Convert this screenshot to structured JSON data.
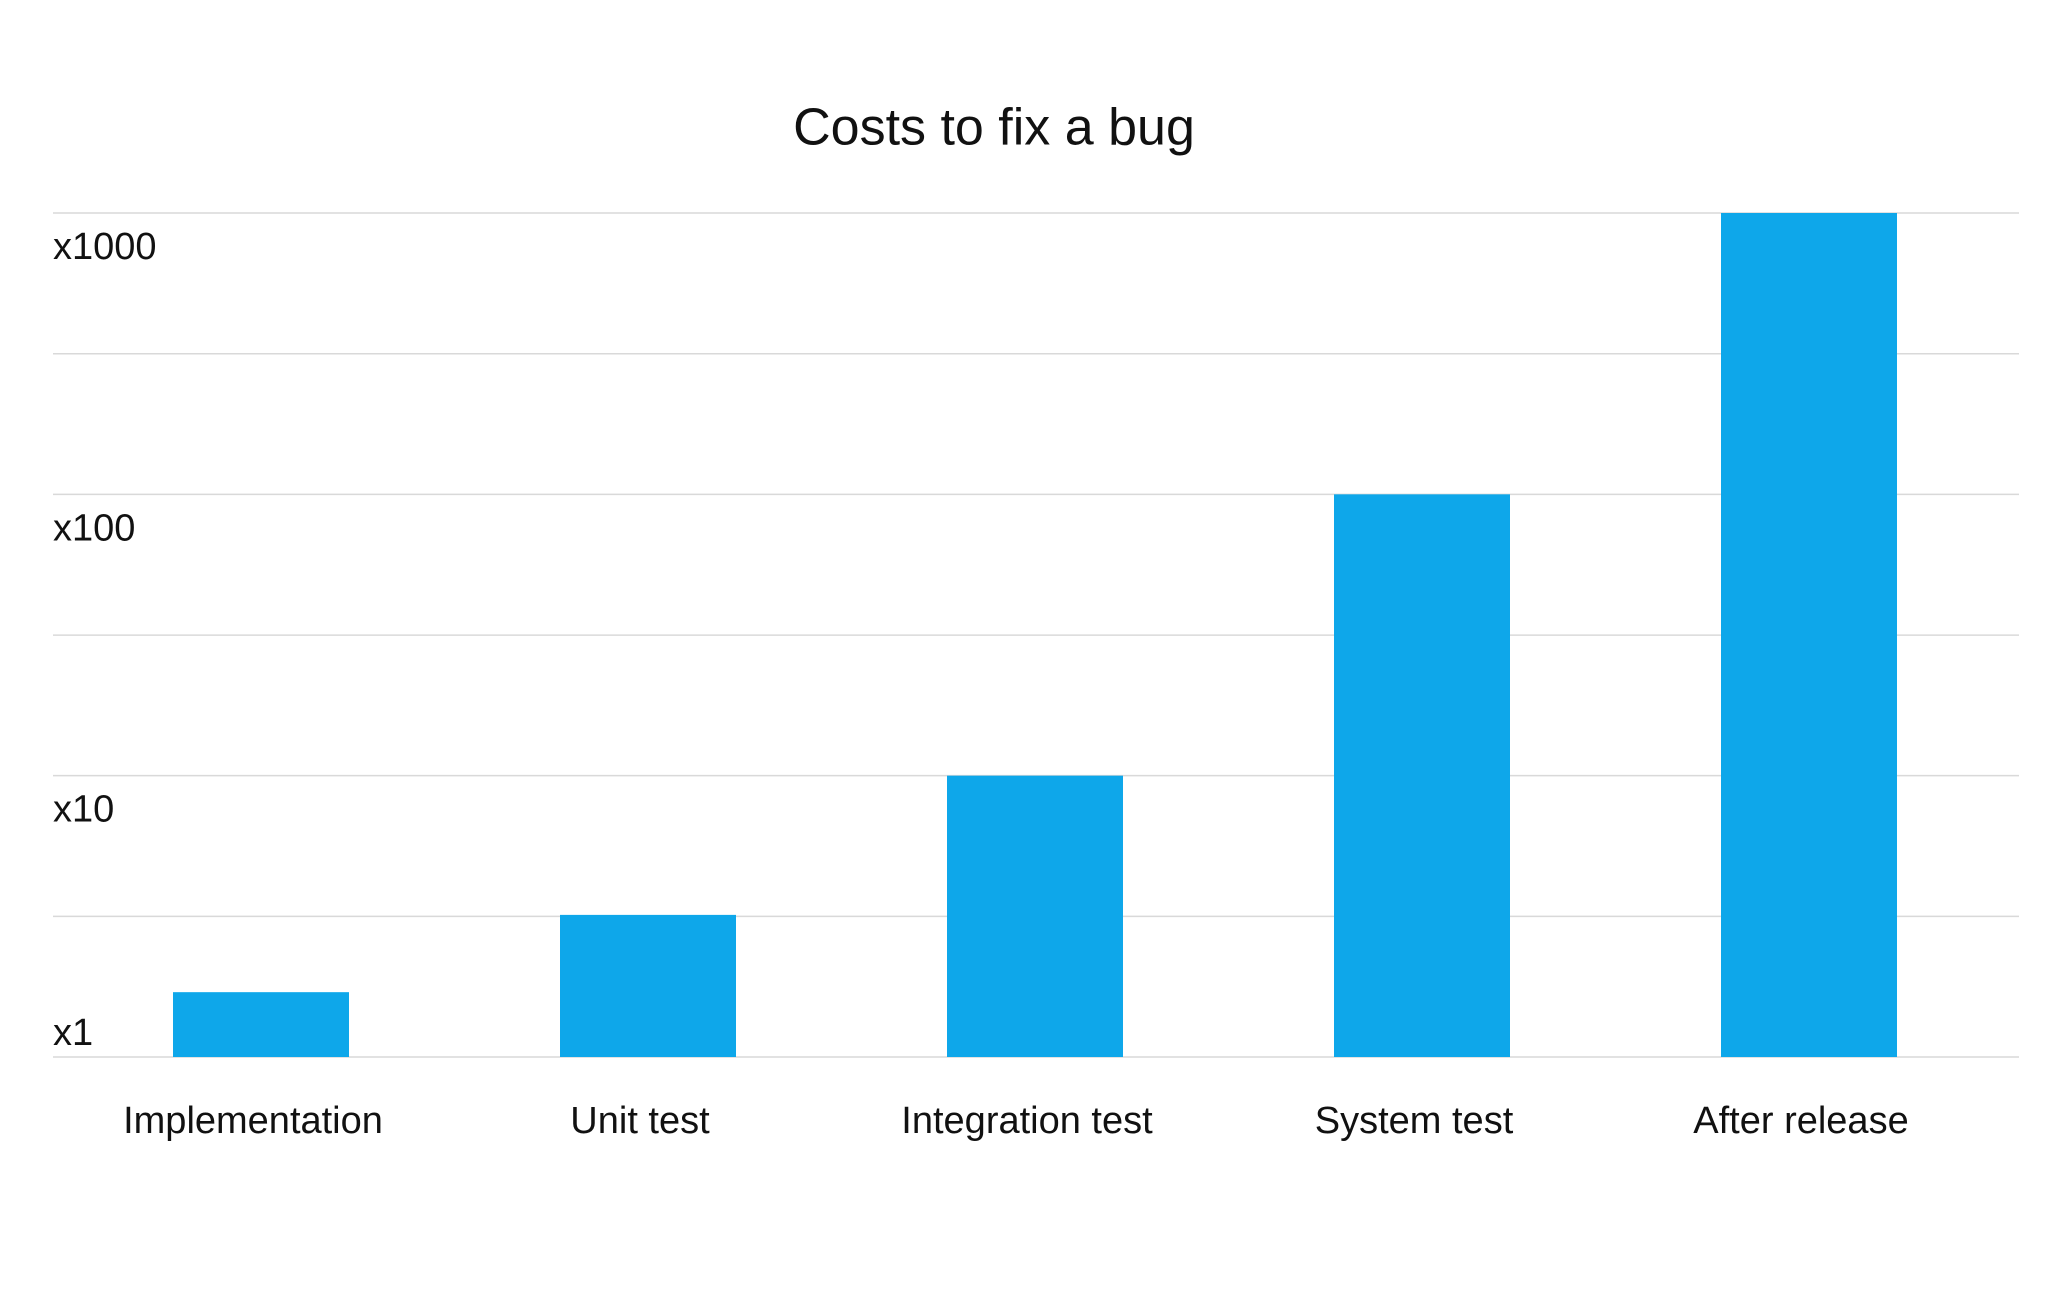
{
  "chart_data": {
    "type": "bar",
    "title": "Costs to fix a bug",
    "categories": [
      "Implementation",
      "Unit test",
      "Integration test",
      "System test",
      "After release"
    ],
    "values": [
      1.7,
      3.2,
      10,
      100,
      1000
    ],
    "color": "#0ea7ea",
    "log_scale": true,
    "ylim": [
      1,
      1000
    ],
    "yticks": [
      {
        "value": 1,
        "label": "x1"
      },
      {
        "value": 10,
        "label": "x10"
      },
      {
        "value": 100,
        "label": "x100"
      },
      {
        "value": 1000,
        "label": "x1000"
      }
    ],
    "ygrid": [
      1,
      3.16,
      10,
      31.6,
      100,
      316,
      1000
    ],
    "grid": true
  }
}
